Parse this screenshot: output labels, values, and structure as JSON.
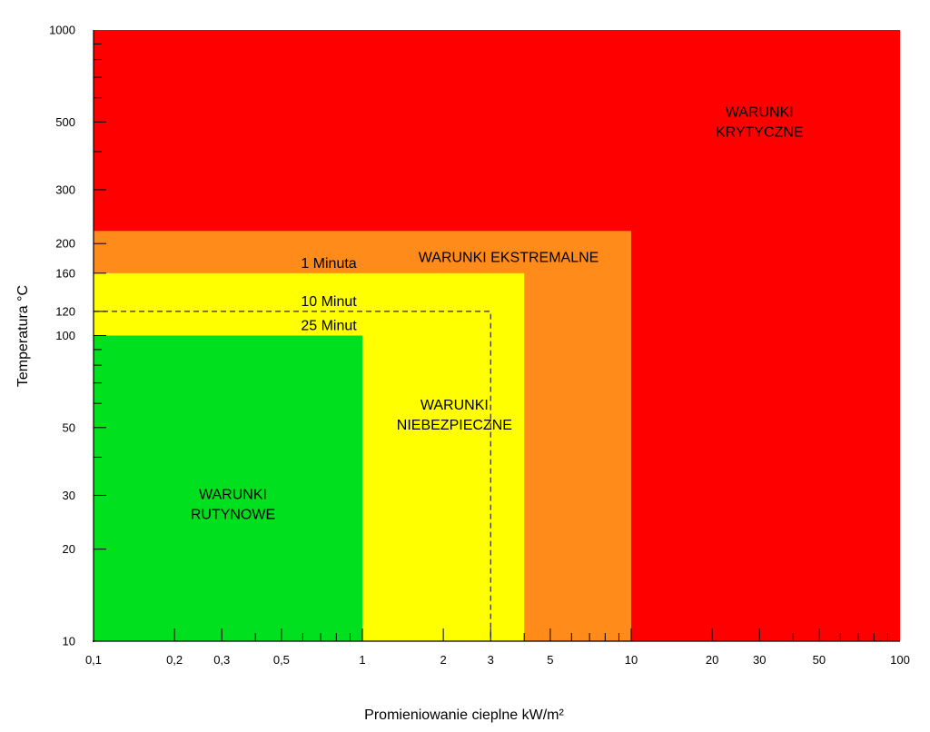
{
  "chart_data": {
    "type": "area",
    "xlabel": "Promieniowanie cieplne kW/m²",
    "ylabel": "Temperatura °C",
    "x_scale": "log",
    "y_scale": "log",
    "xlim": [
      0.1,
      100
    ],
    "ylim": [
      10,
      1000
    ],
    "x_ticks_labeled": [
      {
        "value": 0.1,
        "label": "0,1"
      },
      {
        "value": 0.2,
        "label": "0,2"
      },
      {
        "value": 0.3,
        "label": "0,3"
      },
      {
        "value": 0.5,
        "label": "0,5"
      },
      {
        "value": 1,
        "label": "1"
      },
      {
        "value": 2,
        "label": "2"
      },
      {
        "value": 3,
        "label": "3"
      },
      {
        "value": 5,
        "label": "5"
      },
      {
        "value": 10,
        "label": "10"
      },
      {
        "value": 20,
        "label": "20"
      },
      {
        "value": 30,
        "label": "30"
      },
      {
        "value": 50,
        "label": "50"
      },
      {
        "value": 100,
        "label": "100"
      }
    ],
    "y_ticks_labeled": [
      {
        "value": 10,
        "label": "10"
      },
      {
        "value": 20,
        "label": "20"
      },
      {
        "value": 30,
        "label": "30"
      },
      {
        "value": 50,
        "label": "50"
      },
      {
        "value": 100,
        "label": "100"
      },
      {
        "value": 120,
        "label": "120"
      },
      {
        "value": 160,
        "label": "160"
      },
      {
        "value": 200,
        "label": "200"
      },
      {
        "value": 300,
        "label": "300"
      },
      {
        "value": 500,
        "label": "500"
      },
      {
        "value": 1000,
        "label": "1000"
      }
    ],
    "zones": [
      {
        "label_lines": [
          "WARUNKI",
          "KRYTYCZNE"
        ],
        "x_max": 100,
        "y_max": 1000,
        "color": "#ff0000",
        "label_at": [
          30,
          500
        ]
      },
      {
        "label_lines": [
          "WARUNKI EKSTREMALNE"
        ],
        "x_max": 10,
        "y_max": 220,
        "color": "#ff8c1a",
        "label_at": [
          3.5,
          180
        ]
      },
      {
        "label_lines": [
          "WARUNKI",
          "NIEBEZPIECZNE"
        ],
        "x_max": 4,
        "y_max": 160,
        "color": "#ffff00",
        "label_at": [
          2.2,
          55
        ]
      },
      {
        "label_lines": [
          "WARUNKI",
          "RUTYNOWE"
        ],
        "x_max": 1,
        "y_max": 100,
        "color": "#00e01e",
        "label_at": [
          0.33,
          28
        ]
      }
    ],
    "exposure_limits": [
      {
        "label": "1 Minuta",
        "x_max": 4,
        "y": 160,
        "label_at": [
          0.75,
          160
        ]
      },
      {
        "label": "10 Minut",
        "x_max": 3,
        "y": 120,
        "dashed": true,
        "label_at": [
          0.75,
          120
        ]
      },
      {
        "label": "25 Minut",
        "x_max": 1,
        "y": 100,
        "label_at": [
          0.75,
          100
        ]
      }
    ]
  }
}
